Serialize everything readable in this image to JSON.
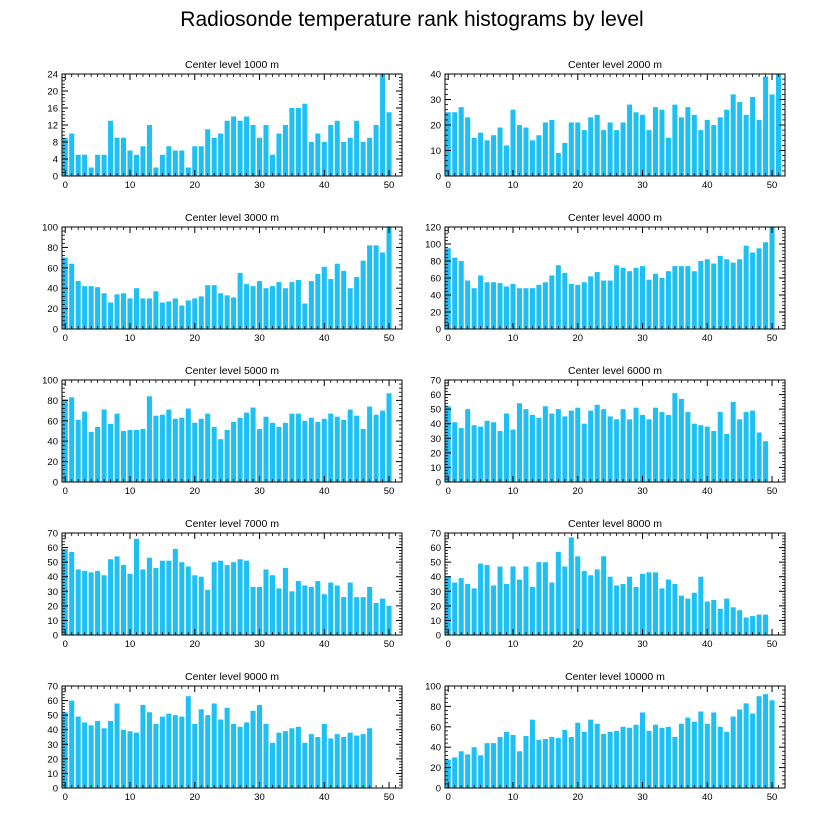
{
  "title": "Radiosonde temperature rank histograms by level",
  "bar_color": "#1ec0f4",
  "chart_data": [
    {
      "type": "bar",
      "title": "Center level 1000 m",
      "xlim": [
        -0.5,
        52
      ],
      "ylim": [
        0,
        24
      ],
      "xticks": [
        0,
        10,
        20,
        30,
        40,
        50
      ],
      "yticks": [
        0,
        4,
        8,
        12,
        16,
        20,
        24
      ],
      "values": [
        9,
        10,
        5,
        5,
        2,
        5,
        5,
        13,
        9,
        9,
        6,
        5,
        7,
        12,
        2,
        5,
        7,
        6,
        6,
        2,
        7,
        7,
        11,
        9,
        10,
        13,
        14,
        13,
        14,
        12,
        9,
        12,
        5,
        10,
        12,
        16,
        16,
        17,
        8,
        10,
        8,
        12,
        13,
        8,
        9,
        13,
        8,
        9,
        12,
        24,
        15
      ]
    },
    {
      "type": "bar",
      "title": "Center level 2000 m",
      "xlim": [
        -0.5,
        52
      ],
      "ylim": [
        0,
        40
      ],
      "xticks": [
        0,
        10,
        20,
        30,
        40,
        50
      ],
      "yticks": [
        0,
        10,
        20,
        30,
        40
      ],
      "values": [
        25,
        25,
        27,
        23,
        15,
        17,
        14,
        16,
        19,
        12,
        26,
        20,
        19,
        14,
        16,
        21,
        22,
        9,
        13,
        21,
        21,
        18,
        23,
        24,
        18,
        21,
        18,
        21,
        28,
        25,
        24,
        18,
        27,
        26,
        15,
        28,
        23,
        27,
        24,
        18,
        22,
        20,
        23,
        26,
        32,
        29,
        24,
        31,
        22,
        39,
        32,
        40
      ]
    },
    {
      "type": "bar",
      "title": "Center level 3000 m",
      "xlim": [
        -0.5,
        52
      ],
      "ylim": [
        0,
        100
      ],
      "xticks": [
        0,
        10,
        20,
        30,
        40,
        50
      ],
      "yticks": [
        0,
        20,
        40,
        60,
        80,
        100
      ],
      "values": [
        70,
        64,
        47,
        42,
        42,
        41,
        35,
        26,
        34,
        35,
        30,
        40,
        30,
        30,
        37,
        26,
        27,
        30,
        23,
        28,
        30,
        32,
        43,
        43,
        35,
        33,
        31,
        55,
        44,
        42,
        47,
        40,
        42,
        46,
        40,
        46,
        48,
        25,
        47,
        54,
        61,
        49,
        64,
        57,
        40,
        51,
        67,
        82,
        82,
        75,
        100
      ]
    },
    {
      "type": "bar",
      "title": "Center level 4000 m",
      "xlim": [
        -0.5,
        52
      ],
      "ylim": [
        0,
        120
      ],
      "xticks": [
        0,
        10,
        20,
        30,
        40,
        50
      ],
      "yticks": [
        0,
        20,
        40,
        60,
        80,
        100,
        120
      ],
      "values": [
        95,
        84,
        80,
        57,
        48,
        63,
        55,
        55,
        54,
        50,
        53,
        48,
        48,
        48,
        52,
        55,
        63,
        75,
        66,
        53,
        52,
        55,
        62,
        67,
        57,
        57,
        75,
        72,
        68,
        72,
        74,
        58,
        65,
        60,
        68,
        74,
        74,
        74,
        68,
        80,
        82,
        77,
        86,
        82,
        78,
        82,
        98,
        90,
        95,
        102,
        120
      ]
    },
    {
      "type": "bar",
      "title": "Center level 5000 m",
      "xlim": [
        -0.5,
        52
      ],
      "ylim": [
        0,
        100
      ],
      "xticks": [
        0,
        10,
        20,
        30,
        40,
        50
      ],
      "yticks": [
        0,
        20,
        40,
        60,
        80,
        100
      ],
      "values": [
        81,
        83,
        61,
        69,
        49,
        54,
        71,
        57,
        67,
        50,
        51,
        51,
        52,
        84,
        65,
        66,
        71,
        62,
        63,
        72,
        58,
        62,
        67,
        54,
        42,
        51,
        59,
        63,
        68,
        73,
        52,
        64,
        58,
        54,
        58,
        67,
        67,
        60,
        63,
        59,
        62,
        67,
        64,
        61,
        71,
        65,
        52,
        74,
        66,
        70,
        87
      ]
    },
    {
      "type": "bar",
      "title": "Center level 6000 m",
      "xlim": [
        -0.5,
        52
      ],
      "ylim": [
        0,
        70
      ],
      "xticks": [
        0,
        10,
        20,
        30,
        40,
        50
      ],
      "yticks": [
        0,
        10,
        20,
        30,
        40,
        50,
        60,
        70
      ],
      "values": [
        52,
        41,
        37,
        50,
        39,
        38,
        42,
        41,
        35,
        47,
        36,
        54,
        50,
        46,
        44,
        52,
        47,
        50,
        45,
        49,
        51,
        40,
        49,
        53,
        50,
        45,
        43,
        50,
        43,
        51,
        46,
        43,
        51,
        48,
        46,
        61,
        57,
        48,
        40,
        39,
        38,
        35,
        48,
        33,
        55,
        43,
        48,
        49,
        34,
        28
      ]
    },
    {
      "type": "bar",
      "title": "Center level 7000 m",
      "xlim": [
        -0.5,
        52
      ],
      "ylim": [
        0,
        70
      ],
      "xticks": [
        0,
        10,
        20,
        30,
        40,
        50
      ],
      "yticks": [
        0,
        10,
        20,
        30,
        40,
        50,
        60,
        70
      ],
      "values": [
        59,
        57,
        45,
        44,
        43,
        44,
        41,
        52,
        54,
        48,
        42,
        66,
        45,
        53,
        46,
        51,
        51,
        59,
        50,
        47,
        41,
        40,
        31,
        50,
        51,
        48,
        50,
        52,
        51,
        33,
        33,
        45,
        41,
        32,
        46,
        30,
        37,
        34,
        33,
        37,
        28,
        36,
        34,
        26,
        36,
        26,
        26,
        33,
        22,
        25,
        20
      ]
    },
    {
      "type": "bar",
      "title": "Center level 8000 m",
      "xlim": [
        -0.5,
        52
      ],
      "ylim": [
        0,
        70
      ],
      "xticks": [
        0,
        10,
        20,
        30,
        40,
        50
      ],
      "yticks": [
        0,
        10,
        20,
        30,
        40,
        50,
        60,
        70
      ],
      "values": [
        40,
        36,
        39,
        35,
        32,
        49,
        48,
        34,
        47,
        35,
        47,
        38,
        47,
        33,
        50,
        50,
        36,
        57,
        47,
        67,
        54,
        44,
        41,
        45,
        54,
        40,
        34,
        35,
        40,
        33,
        42,
        43,
        43,
        32,
        38,
        35,
        27,
        25,
        29,
        40,
        23,
        24,
        18,
        25,
        19,
        17,
        12,
        13,
        14,
        14
      ]
    },
    {
      "type": "bar",
      "title": "Center level 9000 m",
      "xlim": [
        -0.5,
        52
      ],
      "ylim": [
        0,
        70
      ],
      "xticks": [
        0,
        10,
        20,
        30,
        40,
        50
      ],
      "yticks": [
        0,
        10,
        20,
        30,
        40,
        50,
        60,
        70
      ],
      "values": [
        52,
        60,
        49,
        45,
        43,
        46,
        41,
        46,
        58,
        40,
        39,
        38,
        57,
        52,
        44,
        49,
        51,
        50,
        49,
        63,
        44,
        54,
        50,
        58,
        47,
        55,
        44,
        42,
        45,
        53,
        57,
        44,
        31,
        38,
        39,
        41,
        42,
        31,
        37,
        35,
        44,
        34,
        37,
        35,
        38,
        36,
        37,
        41
      ]
    },
    {
      "type": "bar",
      "title": "Center level 10000 m",
      "xlim": [
        -0.5,
        52
      ],
      "ylim": [
        0,
        100
      ],
      "xticks": [
        0,
        10,
        20,
        30,
        40,
        50
      ],
      "yticks": [
        0,
        20,
        40,
        60,
        80,
        100
      ],
      "values": [
        28,
        30,
        36,
        33,
        40,
        32,
        44,
        44,
        50,
        55,
        52,
        36,
        51,
        67,
        47,
        48,
        50,
        49,
        57,
        50,
        64,
        55,
        67,
        63,
        53,
        55,
        56,
        60,
        59,
        62,
        74,
        56,
        62,
        59,
        60,
        50,
        63,
        69,
        65,
        75,
        63,
        74,
        60,
        55,
        70,
        77,
        83,
        73,
        90,
        92,
        86
      ]
    }
  ]
}
